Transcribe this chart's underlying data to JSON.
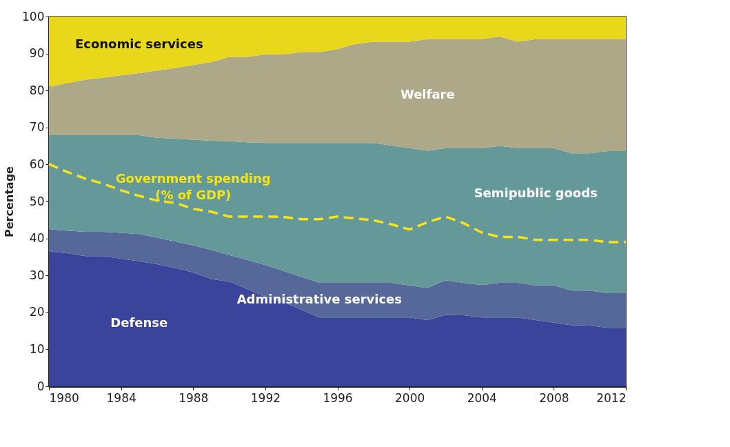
{
  "chart_data": {
    "type": "area",
    "stacked": true,
    "ylabel": "Percentage",
    "xlim": [
      1980,
      2012
    ],
    "xticks": [
      1980,
      1984,
      1988,
      1992,
      1996,
      2000,
      2004,
      2008,
      2012
    ],
    "ylim": [
      0,
      100
    ],
    "yticks": [
      0,
      10,
      20,
      30,
      40,
      50,
      60,
      70,
      80,
      90,
      100
    ],
    "grid": false,
    "legend": false,
    "x": [
      1980,
      1981,
      1982,
      1983,
      1984,
      1985,
      1986,
      1987,
      1988,
      1989,
      1990,
      1991,
      1992,
      1993,
      1994,
      1995,
      1996,
      1997,
      1998,
      1999,
      2000,
      2001,
      2002,
      2003,
      2004,
      2005,
      2006,
      2007,
      2008,
      2009,
      2010,
      2011,
      2012
    ],
    "series": [
      {
        "name": "Defense",
        "color": "#39449a",
        "values": [
          36.5,
          36.0,
          35.2,
          35.2,
          34.5,
          33.8,
          33.0,
          32.0,
          30.8,
          29.0,
          28.3,
          26.3,
          24.1,
          22.8,
          20.7,
          18.6,
          18.6,
          18.6,
          18.6,
          18.6,
          18.6,
          17.9,
          19.3,
          19.2,
          18.6,
          18.6,
          18.6,
          17.9,
          17.2,
          16.5,
          16.4,
          15.8,
          15.8
        ]
      },
      {
        "name": "Administrative services",
        "color": "#56679a",
        "values": [
          6.0,
          6.1,
          6.6,
          6.6,
          7.0,
          7.4,
          7.2,
          7.2,
          7.3,
          7.9,
          7.2,
          7.9,
          8.7,
          8.4,
          8.9,
          9.4,
          9.4,
          9.4,
          9.4,
          9.4,
          8.7,
          8.7,
          9.4,
          8.8,
          8.8,
          9.4,
          9.4,
          9.4,
          10.1,
          9.4,
          9.5,
          9.4,
          9.4
        ]
      },
      {
        "name": "Semipublic goods",
        "color": "#659898",
        "values": [
          25.4,
          25.8,
          26.1,
          26.1,
          26.4,
          26.7,
          27.0,
          27.8,
          28.6,
          29.5,
          30.8,
          31.8,
          33.0,
          34.6,
          36.2,
          37.8,
          37.8,
          37.8,
          37.8,
          37.1,
          37.1,
          37.1,
          35.7,
          36.4,
          37.0,
          37.0,
          36.4,
          37.1,
          37.1,
          37.1,
          37.1,
          38.4,
          38.4
        ]
      },
      {
        "name": "Welfare",
        "color": "#ada887",
        "values": [
          13.1,
          14.1,
          15.0,
          15.6,
          16.2,
          16.8,
          18.2,
          19.1,
          20.2,
          21.3,
          22.8,
          23.1,
          24.0,
          24.0,
          24.6,
          24.6,
          25.4,
          26.8,
          27.4,
          28.1,
          28.8,
          30.2,
          29.5,
          29.5,
          29.5,
          29.6,
          28.8,
          29.5,
          29.5,
          30.9,
          30.9,
          30.3,
          30.3
        ]
      },
      {
        "name": "Economic services",
        "color": "#e8d71a",
        "values": [
          19.0,
          18.0,
          17.1,
          16.5,
          15.9,
          15.3,
          14.6,
          13.9,
          13.1,
          12.3,
          10.9,
          10.9,
          10.2,
          10.2,
          9.6,
          9.6,
          8.8,
          7.4,
          6.8,
          6.8,
          6.8,
          6.1,
          6.1,
          6.1,
          6.1,
          5.4,
          6.8,
          6.1,
          6.1,
          6.1,
          6.1,
          6.1,
          6.1
        ]
      },
      {
        "name": "Government spending (% of GDP)",
        "type": "line",
        "line_style": "dashed",
        "marker": "none",
        "color": "#f5e41c",
        "values": [
          60.1,
          58.0,
          56.2,
          54.8,
          53.0,
          51.5,
          50.2,
          49.6,
          48.0,
          47.2,
          45.9,
          45.9,
          45.9,
          45.8,
          45.2,
          45.2,
          45.9,
          45.4,
          44.9,
          43.8,
          42.4,
          44.4,
          45.9,
          44.1,
          41.6,
          40.4,
          40.4,
          39.6,
          39.6,
          39.6,
          39.6,
          39.0,
          39.0
        ]
      }
    ]
  }
}
